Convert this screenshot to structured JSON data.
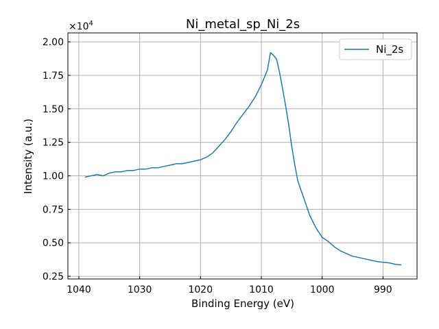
{
  "chart_data": {
    "type": "line",
    "title": "Ni_metal_sp_Ni_2s",
    "xlabel": "Binding Energy (eV)",
    "ylabel": "Intensity (a.u.)",
    "y_multiplier": "×10",
    "y_multiplier_exp": "4",
    "xlim": [
      1041.8,
      984.4
    ],
    "ylim": [
      0.23,
      2.067
    ],
    "x_reversed": true,
    "grid": true,
    "legend_position": "top-right",
    "xticks": [
      1040,
      1030,
      1020,
      1010,
      1000,
      990
    ],
    "xtick_labels": [
      "1040",
      "1030",
      "1020",
      "1010",
      "1000",
      "990"
    ],
    "yticks": [
      0.25,
      0.5,
      0.75,
      1.0,
      1.25,
      1.5,
      1.75,
      2.0
    ],
    "ytick_labels": [
      "0.25",
      "0.50",
      "0.75",
      "1.00",
      "1.25",
      "1.50",
      "1.75",
      "2.00"
    ],
    "series": [
      {
        "name": "Ni_2s",
        "color": "#1f77b4",
        "x": [
          1039,
          1038,
          1037,
          1036,
          1035,
          1034,
          1033,
          1032,
          1031,
          1030,
          1029,
          1028,
          1027,
          1026,
          1025,
          1024,
          1023,
          1022,
          1021,
          1020,
          1019,
          1018,
          1017,
          1016,
          1015,
          1014,
          1013,
          1012,
          1011,
          1010,
          1009,
          1008.5,
          1008,
          1007.5,
          1007,
          1006.5,
          1006,
          1005.5,
          1005,
          1004.5,
          1004,
          1003,
          1002,
          1001,
          1000,
          999,
          998,
          997,
          996,
          995,
          994,
          993,
          992,
          991,
          990,
          989,
          988,
          987
        ],
        "y": [
          0.99,
          1.0,
          1.01,
          1.0,
          1.02,
          1.03,
          1.03,
          1.04,
          1.04,
          1.05,
          1.05,
          1.06,
          1.06,
          1.07,
          1.08,
          1.09,
          1.09,
          1.1,
          1.11,
          1.12,
          1.14,
          1.17,
          1.22,
          1.27,
          1.33,
          1.4,
          1.46,
          1.52,
          1.59,
          1.68,
          1.79,
          1.92,
          1.9,
          1.87,
          1.77,
          1.65,
          1.52,
          1.38,
          1.22,
          1.08,
          0.96,
          0.83,
          0.7,
          0.61,
          0.54,
          0.51,
          0.47,
          0.44,
          0.42,
          0.4,
          0.39,
          0.38,
          0.37,
          0.36,
          0.355,
          0.35,
          0.34,
          0.335
        ]
      }
    ]
  }
}
